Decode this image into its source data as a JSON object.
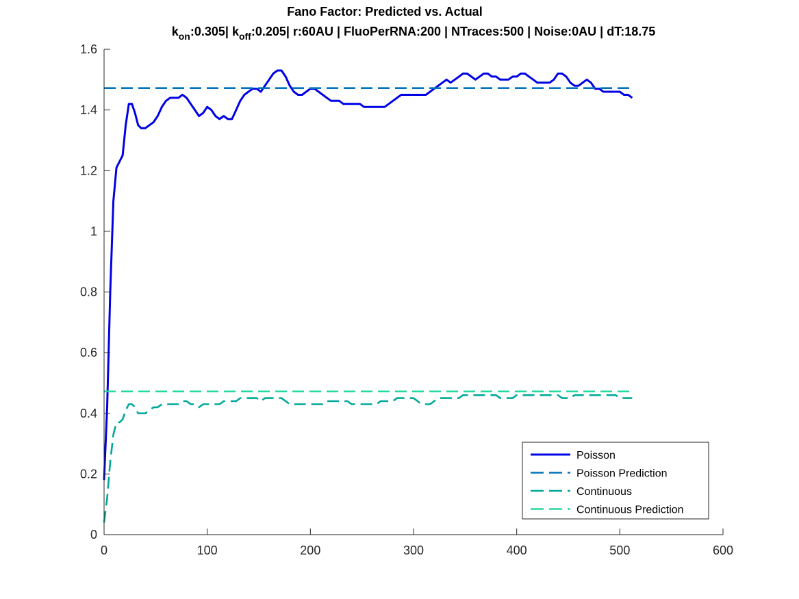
{
  "chart_data": {
    "type": "line",
    "title": "Fano Factor: Predicted vs. Actual",
    "subtitle": {
      "kon_sym": "k",
      "kon_sub": "on",
      "kon_val": ":0.305|",
      "koff_sym": "k",
      "koff_sub": "off",
      "rest": ":0.205| r:60AU | FluoPerRNA:200 | NTraces:500 | Noise:0AU | dT:18.75"
    },
    "xlabel": "",
    "ylabel": "",
    "xlim": [
      0,
      600
    ],
    "ylim": [
      0,
      1.6
    ],
    "xticks": [
      "0",
      "100",
      "200",
      "300",
      "400",
      "500",
      "600"
    ],
    "yticks": [
      "0",
      "0.2",
      "0.4",
      "0.6",
      "0.8",
      "1",
      "1.2",
      "1.4",
      "1.6"
    ],
    "grid": false,
    "legend_position": "bottom-right",
    "series": [
      {
        "name": "Poisson",
        "style": "solid",
        "color": "#0000e6",
        "points": [
          [
            0,
            0.18
          ],
          [
            3,
            0.42
          ],
          [
            6,
            0.8
          ],
          [
            9,
            1.1
          ],
          [
            12,
            1.21
          ],
          [
            15,
            1.23
          ],
          [
            18,
            1.25
          ],
          [
            21,
            1.35
          ],
          [
            24,
            1.42
          ],
          [
            27,
            1.42
          ],
          [
            30,
            1.39
          ],
          [
            33,
            1.35
          ],
          [
            36,
            1.34
          ],
          [
            40,
            1.34
          ],
          [
            44,
            1.35
          ],
          [
            48,
            1.36
          ],
          [
            52,
            1.38
          ],
          [
            56,
            1.41
          ],
          [
            60,
            1.43
          ],
          [
            64,
            1.44
          ],
          [
            68,
            1.44
          ],
          [
            72,
            1.44
          ],
          [
            76,
            1.45
          ],
          [
            80,
            1.44
          ],
          [
            84,
            1.42
          ],
          [
            88,
            1.4
          ],
          [
            92,
            1.38
          ],
          [
            96,
            1.39
          ],
          [
            100,
            1.41
          ],
          [
            104,
            1.4
          ],
          [
            108,
            1.38
          ],
          [
            112,
            1.37
          ],
          [
            116,
            1.38
          ],
          [
            120,
            1.37
          ],
          [
            124,
            1.37
          ],
          [
            128,
            1.4
          ],
          [
            132,
            1.43
          ],
          [
            136,
            1.45
          ],
          [
            140,
            1.46
          ],
          [
            144,
            1.47
          ],
          [
            148,
            1.47
          ],
          [
            152,
            1.46
          ],
          [
            156,
            1.48
          ],
          [
            160,
            1.5
          ],
          [
            164,
            1.52
          ],
          [
            168,
            1.53
          ],
          [
            172,
            1.53
          ],
          [
            176,
            1.51
          ],
          [
            180,
            1.48
          ],
          [
            184,
            1.46
          ],
          [
            188,
            1.45
          ],
          [
            192,
            1.45
          ],
          [
            196,
            1.46
          ],
          [
            200,
            1.47
          ],
          [
            204,
            1.47
          ],
          [
            208,
            1.46
          ],
          [
            212,
            1.45
          ],
          [
            216,
            1.44
          ],
          [
            220,
            1.43
          ],
          [
            224,
            1.43
          ],
          [
            228,
            1.43
          ],
          [
            232,
            1.42
          ],
          [
            236,
            1.42
          ],
          [
            240,
            1.42
          ],
          [
            244,
            1.42
          ],
          [
            248,
            1.42
          ],
          [
            252,
            1.41
          ],
          [
            256,
            1.41
          ],
          [
            260,
            1.41
          ],
          [
            264,
            1.41
          ],
          [
            268,
            1.41
          ],
          [
            272,
            1.41
          ],
          [
            276,
            1.42
          ],
          [
            280,
            1.43
          ],
          [
            284,
            1.44
          ],
          [
            288,
            1.45
          ],
          [
            292,
            1.45
          ],
          [
            296,
            1.45
          ],
          [
            300,
            1.45
          ],
          [
            304,
            1.45
          ],
          [
            308,
            1.45
          ],
          [
            312,
            1.45
          ],
          [
            316,
            1.46
          ],
          [
            320,
            1.47
          ],
          [
            324,
            1.48
          ],
          [
            328,
            1.49
          ],
          [
            332,
            1.5
          ],
          [
            336,
            1.49
          ],
          [
            340,
            1.5
          ],
          [
            344,
            1.51
          ],
          [
            348,
            1.52
          ],
          [
            352,
            1.52
          ],
          [
            356,
            1.51
          ],
          [
            360,
            1.5
          ],
          [
            364,
            1.51
          ],
          [
            368,
            1.52
          ],
          [
            372,
            1.52
          ],
          [
            376,
            1.51
          ],
          [
            380,
            1.51
          ],
          [
            384,
            1.5
          ],
          [
            388,
            1.5
          ],
          [
            392,
            1.5
          ],
          [
            396,
            1.51
          ],
          [
            400,
            1.51
          ],
          [
            404,
            1.52
          ],
          [
            408,
            1.52
          ],
          [
            412,
            1.51
          ],
          [
            416,
            1.5
          ],
          [
            420,
            1.49
          ],
          [
            424,
            1.49
          ],
          [
            428,
            1.49
          ],
          [
            432,
            1.49
          ],
          [
            436,
            1.5
          ],
          [
            440,
            1.52
          ],
          [
            444,
            1.52
          ],
          [
            448,
            1.51
          ],
          [
            452,
            1.49
          ],
          [
            456,
            1.48
          ],
          [
            460,
            1.48
          ],
          [
            464,
            1.49
          ],
          [
            468,
            1.5
          ],
          [
            472,
            1.49
          ],
          [
            476,
            1.47
          ],
          [
            480,
            1.47
          ],
          [
            484,
            1.46
          ],
          [
            488,
            1.46
          ],
          [
            492,
            1.46
          ],
          [
            496,
            1.46
          ],
          [
            500,
            1.46
          ],
          [
            504,
            1.45
          ],
          [
            508,
            1.45
          ],
          [
            512,
            1.44
          ]
        ]
      },
      {
        "name": "Poisson Prediction",
        "style": "dashed",
        "color": "#0072bd",
        "points": [
          [
            0,
            1.472
          ],
          [
            512,
            1.472
          ]
        ]
      },
      {
        "name": "Continuous",
        "style": "dashed",
        "color": "#00a89a",
        "points": [
          [
            0,
            0.04
          ],
          [
            3,
            0.12
          ],
          [
            6,
            0.24
          ],
          [
            9,
            0.33
          ],
          [
            12,
            0.37
          ],
          [
            15,
            0.37
          ],
          [
            18,
            0.38
          ],
          [
            21,
            0.41
          ],
          [
            24,
            0.43
          ],
          [
            27,
            0.43
          ],
          [
            30,
            0.42
          ],
          [
            33,
            0.4
          ],
          [
            36,
            0.4
          ],
          [
            40,
            0.4
          ],
          [
            44,
            0.41
          ],
          [
            48,
            0.42
          ],
          [
            52,
            0.42
          ],
          [
            56,
            0.43
          ],
          [
            60,
            0.43
          ],
          [
            64,
            0.43
          ],
          [
            68,
            0.43
          ],
          [
            72,
            0.43
          ],
          [
            76,
            0.44
          ],
          [
            80,
            0.44
          ],
          [
            84,
            0.43
          ],
          [
            88,
            0.43
          ],
          [
            92,
            0.42
          ],
          [
            96,
            0.43
          ],
          [
            100,
            0.43
          ],
          [
            104,
            0.43
          ],
          [
            108,
            0.43
          ],
          [
            112,
            0.43
          ],
          [
            116,
            0.44
          ],
          [
            120,
            0.44
          ],
          [
            124,
            0.44
          ],
          [
            128,
            0.44
          ],
          [
            132,
            0.45
          ],
          [
            136,
            0.45
          ],
          [
            140,
            0.45
          ],
          [
            144,
            0.45
          ],
          [
            148,
            0.45
          ],
          [
            152,
            0.44
          ],
          [
            156,
            0.45
          ],
          [
            160,
            0.45
          ],
          [
            164,
            0.45
          ],
          [
            168,
            0.45
          ],
          [
            172,
            0.45
          ],
          [
            176,
            0.44
          ],
          [
            180,
            0.43
          ],
          [
            184,
            0.43
          ],
          [
            188,
            0.43
          ],
          [
            192,
            0.43
          ],
          [
            196,
            0.43
          ],
          [
            200,
            0.43
          ],
          [
            204,
            0.43
          ],
          [
            208,
            0.43
          ],
          [
            212,
            0.43
          ],
          [
            216,
            0.44
          ],
          [
            220,
            0.44
          ],
          [
            224,
            0.44
          ],
          [
            228,
            0.44
          ],
          [
            232,
            0.44
          ],
          [
            236,
            0.44
          ],
          [
            240,
            0.43
          ],
          [
            244,
            0.43
          ],
          [
            248,
            0.43
          ],
          [
            252,
            0.43
          ],
          [
            256,
            0.43
          ],
          [
            260,
            0.43
          ],
          [
            264,
            0.43
          ],
          [
            268,
            0.44
          ],
          [
            272,
            0.44
          ],
          [
            276,
            0.44
          ],
          [
            280,
            0.44
          ],
          [
            284,
            0.45
          ],
          [
            288,
            0.45
          ],
          [
            292,
            0.45
          ],
          [
            296,
            0.45
          ],
          [
            300,
            0.45
          ],
          [
            304,
            0.44
          ],
          [
            308,
            0.43
          ],
          [
            312,
            0.43
          ],
          [
            316,
            0.43
          ],
          [
            320,
            0.44
          ],
          [
            324,
            0.45
          ],
          [
            328,
            0.45
          ],
          [
            332,
            0.45
          ],
          [
            336,
            0.45
          ],
          [
            340,
            0.45
          ],
          [
            344,
            0.45
          ],
          [
            348,
            0.46
          ],
          [
            352,
            0.46
          ],
          [
            356,
            0.46
          ],
          [
            360,
            0.46
          ],
          [
            364,
            0.46
          ],
          [
            368,
            0.46
          ],
          [
            372,
            0.46
          ],
          [
            376,
            0.46
          ],
          [
            380,
            0.46
          ],
          [
            384,
            0.45
          ],
          [
            388,
            0.45
          ],
          [
            392,
            0.45
          ],
          [
            396,
            0.45
          ],
          [
            400,
            0.46
          ],
          [
            404,
            0.46
          ],
          [
            408,
            0.46
          ],
          [
            412,
            0.46
          ],
          [
            416,
            0.46
          ],
          [
            420,
            0.46
          ],
          [
            424,
            0.46
          ],
          [
            428,
            0.46
          ],
          [
            432,
            0.46
          ],
          [
            436,
            0.46
          ],
          [
            440,
            0.46
          ],
          [
            444,
            0.45
          ],
          [
            448,
            0.45
          ],
          [
            452,
            0.45
          ],
          [
            456,
            0.46
          ],
          [
            460,
            0.46
          ],
          [
            464,
            0.46
          ],
          [
            468,
            0.46
          ],
          [
            472,
            0.46
          ],
          [
            476,
            0.46
          ],
          [
            480,
            0.46
          ],
          [
            484,
            0.46
          ],
          [
            488,
            0.46
          ],
          [
            492,
            0.46
          ],
          [
            496,
            0.46
          ],
          [
            500,
            0.45
          ],
          [
            504,
            0.45
          ],
          [
            508,
            0.45
          ],
          [
            512,
            0.45
          ]
        ]
      },
      {
        "name": "Continuous Prediction",
        "style": "dashed",
        "color": "#26d9a0",
        "points": [
          [
            0,
            0.472
          ],
          [
            512,
            0.472
          ]
        ]
      }
    ]
  }
}
